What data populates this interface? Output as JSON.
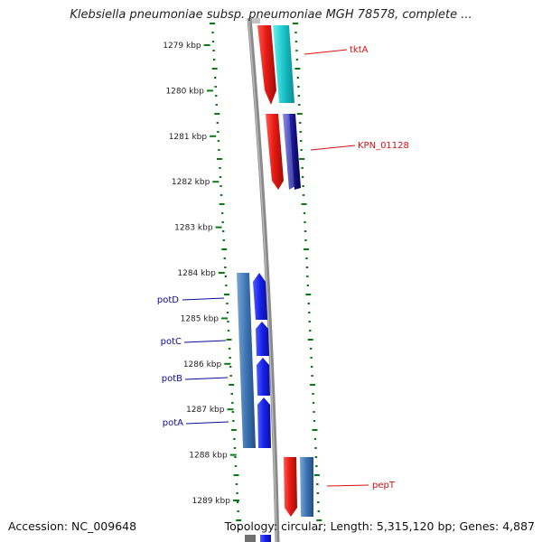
{
  "title": "Klebsiella pneumoniae subsp. pneumoniae MGH 78578, complete ...",
  "footer": {
    "accession": "Accession: NC_009648",
    "topology": "Topology: circular; Length: 5,315,120 bp; Genes: 4,887"
  },
  "ruler": {
    "unit": "kbp",
    "labels": [
      "1279 kbp",
      "1280 kbp",
      "1281 kbp",
      "1282 kbp",
      "1283 kbp",
      "1284 kbp",
      "1285 kbp",
      "1286 kbp",
      "1287 kbp",
      "1288 kbp",
      "1289 kbp"
    ]
  },
  "genes": {
    "forward": [
      {
        "label": "tktA",
        "color": "#e8231f"
      },
      {
        "label": "KPN_01128",
        "color": "#e8231f"
      },
      {
        "label": "pepT",
        "color": "#e8231f"
      }
    ],
    "reverse": [
      {
        "label": "potD",
        "color": "#2f67b8"
      },
      {
        "label": "potC",
        "color": "#2f67b8"
      },
      {
        "label": "potB",
        "color": "#2f67b8"
      },
      {
        "label": "potA",
        "color": "#2f67b8"
      }
    ]
  },
  "colors": {
    "forward_label": "#d81010",
    "reverse_label": "#0b0b9a",
    "tick": "#0a7a14",
    "backbone": "#8a8a8a"
  }
}
